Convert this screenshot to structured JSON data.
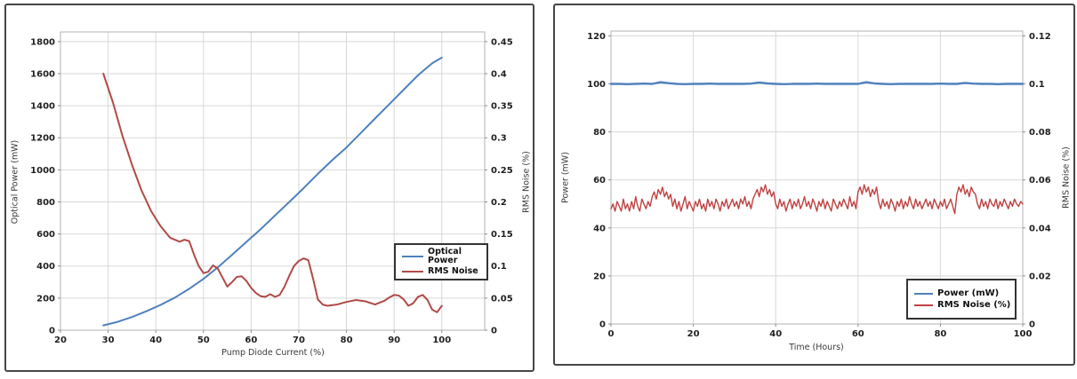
{
  "chart_data": [
    {
      "id": "pump-current-chart",
      "type": "line",
      "title": "",
      "x_label": "Pump Diode Current (%)",
      "y_left_label": "Optical Power (mW)",
      "y_right_label": "RMS Noise (%)",
      "xlim": [
        20,
        109
      ],
      "y_left_lim": [
        0,
        1860
      ],
      "y_right_lim": [
        0,
        0.465
      ],
      "x_tick_values": [
        20,
        30,
        40,
        50,
        60,
        70,
        80,
        90,
        100
      ],
      "y_left_tick_values": [
        0,
        200,
        400,
        600,
        800,
        1000,
        1200,
        1400,
        1600,
        1800
      ],
      "y_right_tick_values": [
        0,
        0.05,
        0.1,
        0.15,
        0.2,
        0.25,
        0.3,
        0.35,
        0.4,
        0.45
      ],
      "grid": true,
      "legend_position": "inside-right",
      "legend": {
        "items": [
          {
            "label": "Optical Power",
            "color": "#4F81BD"
          },
          {
            "label": "RMS Noise",
            "color": "#AF4B47"
          }
        ]
      },
      "series": [
        {
          "name": "Optical Power",
          "axis": "left",
          "color": "#4F81BD",
          "width": 2,
          "x": [
            29,
            32,
            35,
            38,
            41,
            44,
            47,
            50,
            53,
            56,
            59,
            62,
            65,
            68,
            71,
            74,
            77,
            80,
            83,
            86,
            89,
            92,
            95,
            98,
            100
          ],
          "y": [
            30,
            52,
            82,
            118,
            158,
            203,
            258,
            320,
            392,
            470,
            550,
            630,
            715,
            800,
            885,
            975,
            1060,
            1140,
            1230,
            1320,
            1410,
            1500,
            1590,
            1665,
            1700
          ]
        },
        {
          "name": "RMS Noise",
          "axis": "right",
          "color": "#AF4B47",
          "width": 2,
          "x": [
            29,
            31,
            33,
            35,
            37,
            39,
            41,
            43,
            45,
            46,
            47,
            48,
            49,
            50,
            51,
            52,
            53,
            54,
            55,
            56,
            57,
            58,
            59,
            60,
            61,
            62,
            63,
            64,
            65,
            66,
            67,
            68,
            69,
            70,
            71,
            72,
            73,
            74,
            75,
            76,
            78,
            80,
            82,
            84,
            86,
            88,
            89,
            90,
            91,
            92,
            93,
            94,
            95,
            96,
            97,
            98,
            99,
            100
          ],
          "y": [
            0.4,
            0.355,
            0.303,
            0.258,
            0.218,
            0.186,
            0.162,
            0.144,
            0.138,
            0.141,
            0.139,
            0.118,
            0.1,
            0.089,
            0.091,
            0.101,
            0.096,
            0.082,
            0.068,
            0.075,
            0.083,
            0.084,
            0.077,
            0.066,
            0.058,
            0.053,
            0.052,
            0.056,
            0.052,
            0.055,
            0.068,
            0.085,
            0.1,
            0.108,
            0.112,
            0.109,
            0.08,
            0.048,
            0.04,
            0.038,
            0.04,
            0.044,
            0.047,
            0.045,
            0.04,
            0.046,
            0.051,
            0.055,
            0.054,
            0.048,
            0.038,
            0.042,
            0.052,
            0.055,
            0.047,
            0.032,
            0.028,
            0.038
          ]
        }
      ]
    },
    {
      "id": "stability-chart",
      "type": "line",
      "title": "",
      "x_label": "Time (Hours)",
      "y_left_label": "Power (mW)",
      "y_right_label": "RMS Noise (%)",
      "xlim": [
        0,
        100
      ],
      "y_left_lim": [
        0,
        122
      ],
      "y_right_lim": [
        0,
        0.122
      ],
      "x_tick_values": [
        0,
        20,
        40,
        60,
        80,
        100
      ],
      "y_left_tick_values": [
        0,
        20,
        40,
        60,
        80,
        100,
        120
      ],
      "y_right_tick_values": [
        0,
        0.02,
        0.04,
        0.06,
        0.08,
        0.1,
        0.12
      ],
      "grid": true,
      "legend_position": "inside-bottom-right",
      "legend": {
        "items": [
          {
            "label": "Power (mW)",
            "color": "#4F81BD"
          },
          {
            "label": "RMS Noise (%)",
            "color": "#BE4342"
          }
        ]
      },
      "series": [
        {
          "name": "Power (mW)",
          "axis": "left",
          "color": "#4F81BD",
          "width": 2.4,
          "x_start": 0,
          "x_step": 2,
          "y": [
            100.0,
            100.0,
            99.9,
            100.0,
            100.1,
            100.0,
            100.7,
            100.3,
            100.0,
            99.9,
            100.0,
            100.0,
            100.1,
            100.0,
            100.0,
            100.0,
            100.0,
            100.1,
            100.6,
            100.2,
            100.0,
            99.9,
            100.0,
            100.0,
            100.0,
            100.1,
            100.0,
            100.0,
            100.0,
            100.0,
            100.0,
            100.7,
            100.2,
            100.0,
            99.9,
            100.0,
            100.0,
            100.0,
            100.0,
            100.0,
            100.1,
            100.0,
            100.0,
            100.4,
            100.1,
            100.0,
            100.0,
            99.9,
            100.0,
            100.0,
            100.0
          ]
        },
        {
          "name": "RMS Noise (%)",
          "axis": "right",
          "color": "#BE4342",
          "width": 1.4,
          "x_start": 0,
          "x_step": 0.5,
          "y": [
            0.048,
            0.05,
            0.047,
            0.051,
            0.049,
            0.047,
            0.052,
            0.048,
            0.05,
            0.047,
            0.051,
            0.048,
            0.053,
            0.049,
            0.047,
            0.052,
            0.05,
            0.048,
            0.051,
            0.049,
            0.053,
            0.055,
            0.052,
            0.056,
            0.054,
            0.057,
            0.053,
            0.055,
            0.052,
            0.054,
            0.049,
            0.052,
            0.048,
            0.051,
            0.047,
            0.05,
            0.053,
            0.048,
            0.051,
            0.049,
            0.047,
            0.051,
            0.049,
            0.052,
            0.048,
            0.05,
            0.047,
            0.052,
            0.049,
            0.051,
            0.048,
            0.052,
            0.05,
            0.047,
            0.051,
            0.049,
            0.052,
            0.048,
            0.05,
            0.052,
            0.049,
            0.051,
            0.048,
            0.052,
            0.05,
            0.053,
            0.049,
            0.051,
            0.048,
            0.052,
            0.054,
            0.056,
            0.053,
            0.057,
            0.055,
            0.058,
            0.054,
            0.056,
            0.053,
            0.055,
            0.05,
            0.048,
            0.052,
            0.049,
            0.051,
            0.047,
            0.05,
            0.052,
            0.048,
            0.051,
            0.049,
            0.052,
            0.048,
            0.05,
            0.053,
            0.049,
            0.051,
            0.048,
            0.052,
            0.05,
            0.047,
            0.051,
            0.049,
            0.052,
            0.048,
            0.051,
            0.049,
            0.047,
            0.052,
            0.05,
            0.048,
            0.051,
            0.049,
            0.052,
            0.05,
            0.048,
            0.053,
            0.049,
            0.051,
            0.048,
            0.055,
            0.057,
            0.054,
            0.058,
            0.055,
            0.057,
            0.053,
            0.056,
            0.054,
            0.057,
            0.051,
            0.048,
            0.052,
            0.049,
            0.051,
            0.048,
            0.052,
            0.05,
            0.047,
            0.051,
            0.049,
            0.052,
            0.048,
            0.051,
            0.049,
            0.053,
            0.05,
            0.048,
            0.052,
            0.049,
            0.051,
            0.048,
            0.05,
            0.052,
            0.049,
            0.051,
            0.048,
            0.052,
            0.05,
            0.048,
            0.051,
            0.049,
            0.052,
            0.048,
            0.05,
            0.052,
            0.049,
            0.046,
            0.054,
            0.057,
            0.055,
            0.058,
            0.054,
            0.056,
            0.053,
            0.057,
            0.055,
            0.054,
            0.05,
            0.048,
            0.052,
            0.049,
            0.051,
            0.048,
            0.052,
            0.05,
            0.049,
            0.052,
            0.048,
            0.051,
            0.049,
            0.052,
            0.05,
            0.048,
            0.051,
            0.049,
            0.052,
            0.05,
            0.049,
            0.051,
            0.05
          ]
        }
      ]
    }
  ]
}
